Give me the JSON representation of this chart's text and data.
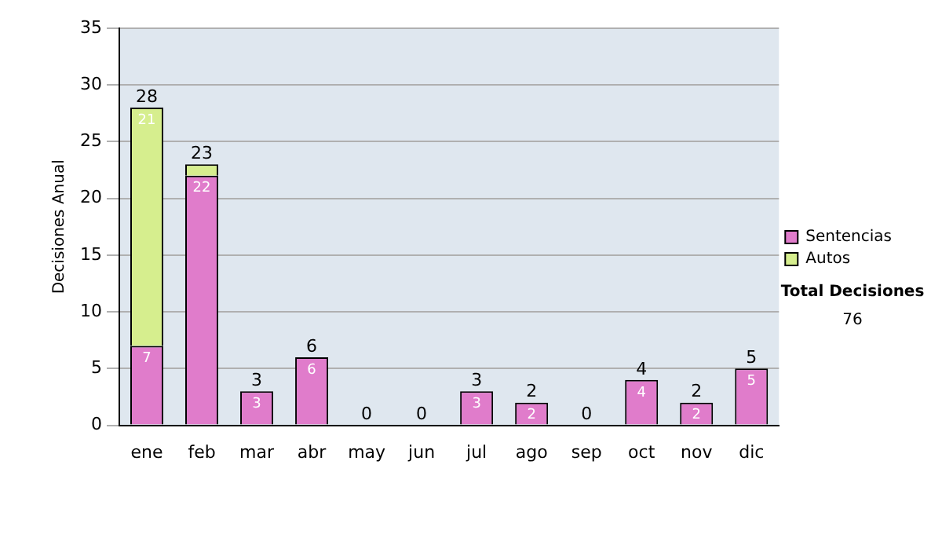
{
  "chart_data": {
    "type": "bar",
    "ylabel": "Decisiones Anual",
    "categories": [
      "ene",
      "feb",
      "mar",
      "abr",
      "may",
      "jun",
      "jul",
      "ago",
      "sep",
      "oct",
      "nov",
      "dic"
    ],
    "stacked": true,
    "ylim": [
      0,
      35
    ],
    "yticks": [
      0,
      5,
      10,
      15,
      20,
      25,
      30,
      35
    ],
    "grid": "y",
    "legend": "right",
    "series": [
      {
        "name": "Sentencias",
        "color": "#e07ccb",
        "values": [
          7,
          22,
          3,
          6,
          0,
          0,
          3,
          2,
          0,
          4,
          2,
          5
        ],
        "value_labels": [
          "7",
          "22",
          "3",
          "6",
          null,
          null,
          "3",
          "2",
          null,
          "4",
          "2",
          "5"
        ]
      },
      {
        "name": "Autos",
        "color": "#d6ee8e",
        "values": [
          21,
          1,
          0,
          0,
          0,
          0,
          0,
          0,
          0,
          0,
          0,
          0
        ],
        "value_labels": [
          "21",
          null,
          null,
          null,
          null,
          null,
          null,
          null,
          null,
          null,
          null,
          null
        ]
      }
    ],
    "totals": [
      "28",
      "23",
      "3",
      "6",
      "0",
      "0",
      "3",
      "2",
      "0",
      "4",
      "2",
      "5"
    ],
    "annotations": [
      "Total Decisiones",
      "76"
    ]
  }
}
